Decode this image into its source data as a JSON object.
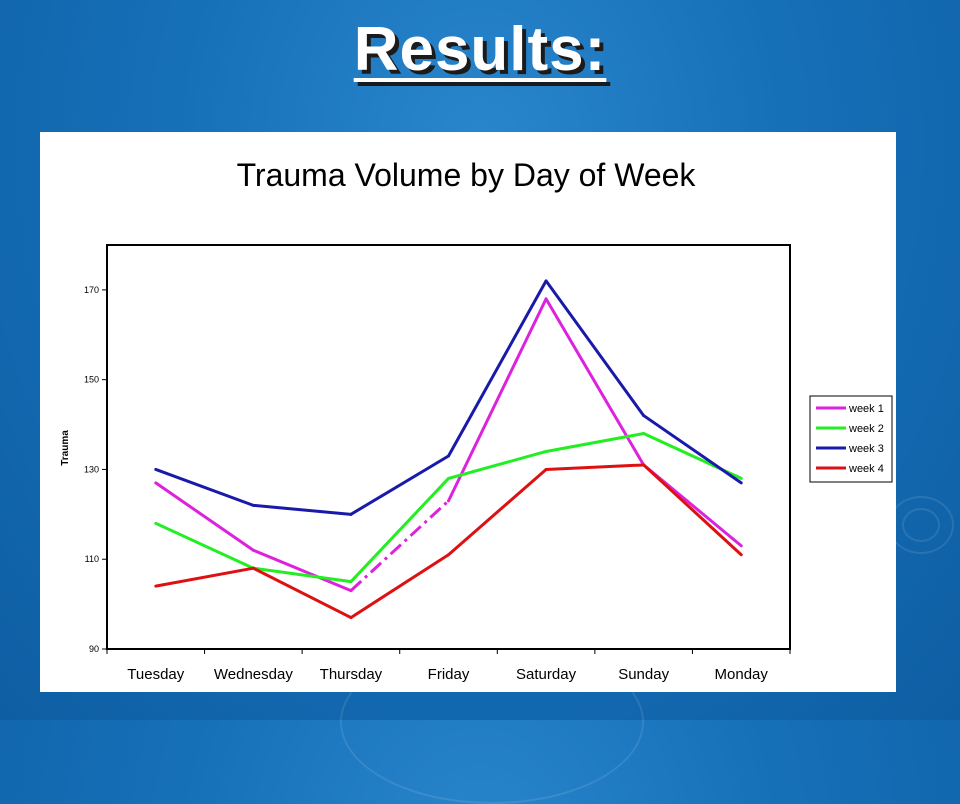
{
  "slide": {
    "title": "Results:"
  },
  "chart_data": {
    "type": "line",
    "title": "Trauma Volume by Day of Week",
    "xlabel": "",
    "ylabel": "Trauma",
    "ylim": [
      90,
      180
    ],
    "yticks": [
      90,
      110,
      130,
      150,
      170
    ],
    "grid": false,
    "legend_position": "right",
    "categories": [
      "Tuesday",
      "Wednesday",
      "Thursday",
      "Friday",
      "Saturday",
      "Sunday",
      "Monday"
    ],
    "series": [
      {
        "name": "week 1",
        "color": "#dd22dd",
        "values": [
          127,
          112,
          103,
          123,
          168,
          131,
          113
        ],
        "dashed_segment": [
          2,
          3
        ]
      },
      {
        "name": "week 2",
        "color": "#22ee22",
        "values": [
          118,
          108,
          105,
          128,
          134,
          138,
          128
        ]
      },
      {
        "name": "week 3",
        "color": "#1a1aaa",
        "values": [
          130,
          122,
          120,
          133,
          172,
          142,
          127
        ]
      },
      {
        "name": "week 4",
        "color": "#dd1111",
        "values": [
          104,
          108,
          97,
          111,
          130,
          131,
          111
        ]
      }
    ]
  }
}
